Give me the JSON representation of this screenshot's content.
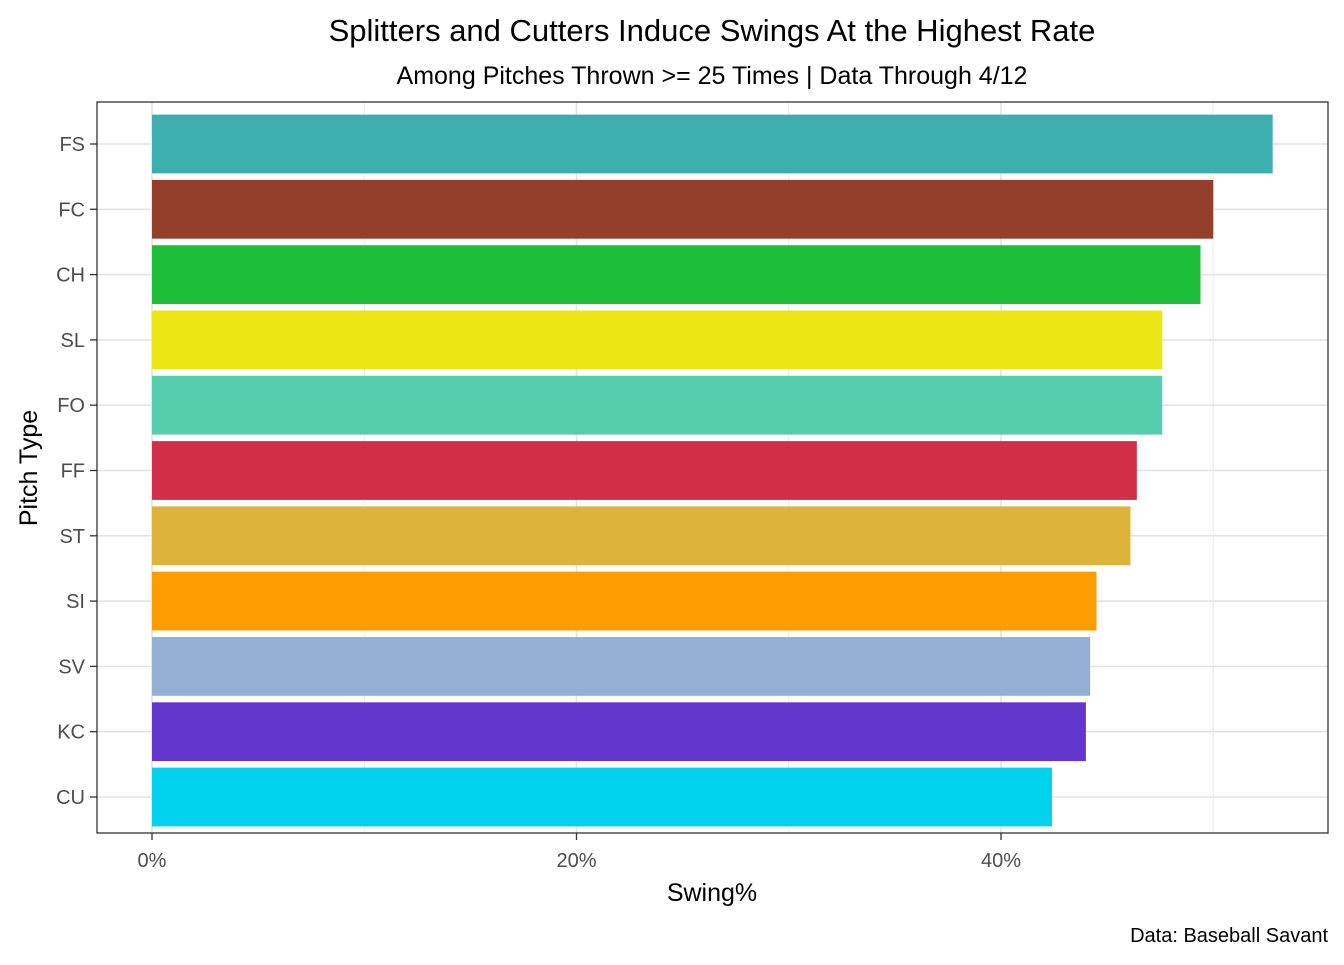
{
  "chart_data": {
    "type": "bar",
    "orientation": "horizontal",
    "title": "Splitters and Cutters Induce Swings At the Highest Rate",
    "subtitle": "Among Pitches Thrown >= 25 Times | Data Through 4/12",
    "xlabel": "Swing%",
    "ylabel": "Pitch Type",
    "caption": "Data: Baseball Savant",
    "xlim": [
      -0.026,
      0.555
    ],
    "x_ticks": [
      0,
      0.2,
      0.4
    ],
    "x_tick_labels": [
      "0%",
      "20%",
      "40%"
    ],
    "x_minor_ticks": [
      0.1,
      0.3,
      0.5
    ],
    "grid": true,
    "legend": "none",
    "categories": [
      "FS",
      "FC",
      "CH",
      "SL",
      "FO",
      "FF",
      "ST",
      "SI",
      "SV",
      "KC",
      "CU"
    ],
    "values": [
      0.528,
      0.5,
      0.494,
      0.476,
      0.476,
      0.464,
      0.461,
      0.445,
      0.442,
      0.44,
      0.424
    ],
    "colors": [
      "#3BAEAD",
      "#933F2C",
      "#1DBE3A",
      "#EDE615",
      "#55CCAB",
      "#D22D49",
      "#DDB33A",
      "#FE9D00",
      "#93AFD4",
      "#6236CD",
      "#00D1ED"
    ]
  }
}
